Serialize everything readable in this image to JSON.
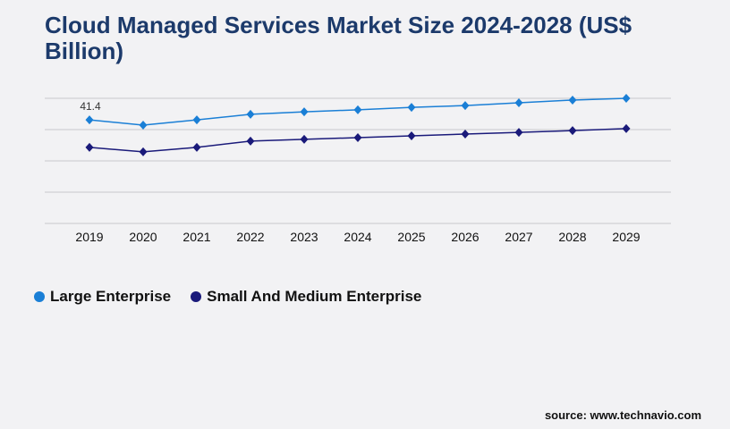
{
  "chart_data": {
    "type": "line",
    "title": "Cloud Managed Services Market Size 2024-2028 (US$ Billion)",
    "xlabel": "",
    "ylabel": "",
    "categories": [
      "2019",
      "2020",
      "2021",
      "2022",
      "2023",
      "2024",
      "2025",
      "2026",
      "2027",
      "2028",
      "2029"
    ],
    "ylim": [
      0,
      50
    ],
    "grid": true,
    "y_tick_labels_shown": false,
    "legend_placement": "bottom-left",
    "series": [
      {
        "name": "Large Enterprise",
        "color": "#1a7fd6",
        "values": [
          41.4,
          39.3,
          41.4,
          43.6,
          44.6,
          45.4,
          46.4,
          47.1,
          48.2,
          49.3,
          50.0
        ]
      },
      {
        "name": "Small And Medium Enterprise",
        "color": "#1a1a7a",
        "values": [
          30.4,
          28.6,
          30.4,
          32.9,
          33.6,
          34.3,
          35.0,
          35.7,
          36.4,
          37.1,
          37.9
        ]
      }
    ],
    "annotations": [
      {
        "series": 0,
        "index": 0,
        "text": "41.4"
      }
    ]
  },
  "source": "source: www.technavio.com"
}
